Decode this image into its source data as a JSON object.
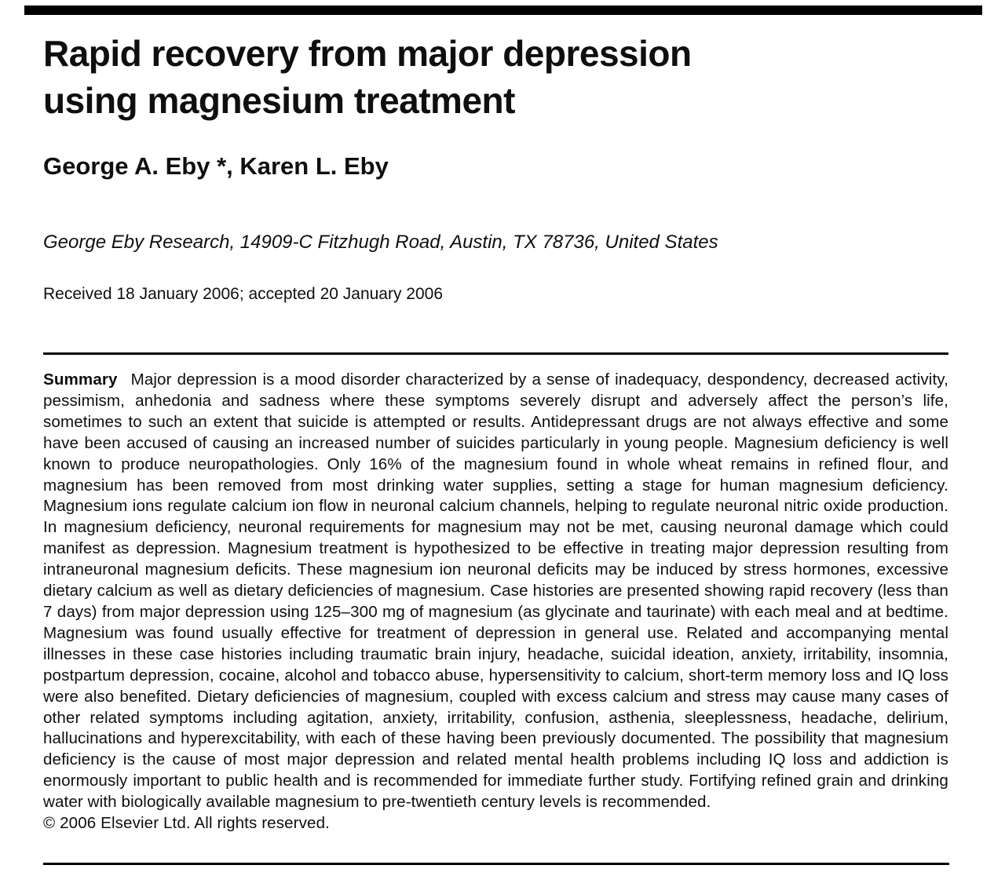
{
  "document": {
    "title": {
      "line1": "Rapid recovery from major depression",
      "line2": "using magnesium treatment"
    },
    "authors": "George A. Eby *, Karen L. Eby",
    "affiliation": "George Eby Research, 14909-C Fitzhugh Road, Austin, TX 78736, United States",
    "received": "Received 18 January 2006; accepted 20 January 2006",
    "abstract": {
      "label": "Summary",
      "text": "Major depression is a mood disorder characterized by a sense of inadequacy, despondency, decreased activity, pessimism, anhedonia and sadness where these symptoms severely disrupt and adversely affect the person’s life, sometimes to such an extent that suicide is attempted or results. Antidepressant drugs are not always effective and some have been accused of causing an increased number of suicides particularly in young people. Magnesium deficiency is well known to produce neuropathologies. Only 16% of the magnesium found in whole wheat remains in refined flour, and magnesium has been removed from most drinking water supplies, setting a stage for human magnesium deficiency. Magnesium ions regulate calcium ion flow in neuronal calcium channels, helping to regulate neuronal nitric oxide production. In magnesium deficiency, neuronal requirements for magnesium may not be met, causing neuronal damage which could manifest as depression. Magnesium treatment is hypothesized to be effective in treating major depression resulting from intraneuronal magnesium deficits. These magnesium ion neuronal deficits may be induced by stress hormones, excessive dietary calcium as well as dietary deficiencies of magnesium. Case histories are presented showing rapid recovery (less than 7 days) from major depression using 125–300 mg of magnesium (as glycinate and taurinate) with each meal and at bedtime. Magnesium was found usually effective for treatment of depression in general use. Related and accompanying mental illnesses in these case histories including traumatic brain injury, headache, suicidal ideation, anxiety, irritability, insomnia, postpartum depression, cocaine, alcohol and tobacco abuse, hypersensitivity to calcium, short-term memory loss and IQ loss were also benefited. Dietary deficiencies of magnesium, coupled with excess calcium and stress may cause many cases of other related symptoms including agitation, anxiety, irritability, confusion, asthenia, sleeplessness, headache, delirium, hallucinations and hyperexcitability, with each of these having been previously documented. The possibility that magnesium deficiency is the cause of most major depression and related mental health problems including IQ loss and addiction is enormously important to public health and is recommended for immediate further study. Fortifying refined grain and drinking water with biologically available magnesium to pre-twentieth century levels is recommended.",
      "copyright": "© 2006 Elsevier Ltd. All rights reserved."
    }
  },
  "colors": {
    "text": "#0f0f0f",
    "rule": "#000000",
    "background": "#ffffff"
  }
}
